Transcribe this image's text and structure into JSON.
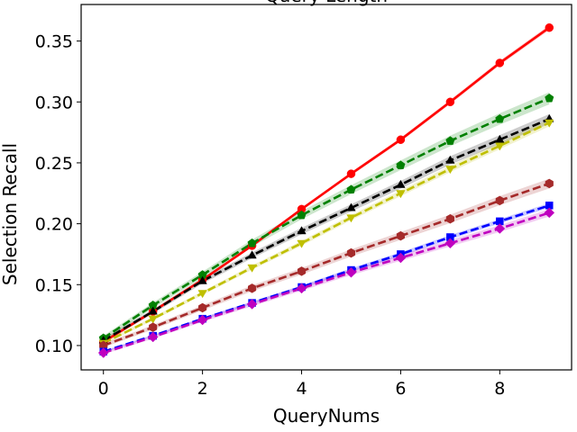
{
  "chart_data": {
    "type": "line",
    "title": "Query Length",
    "xlabel": "QueryNums",
    "ylabel": "Selection Recall",
    "xlim": [
      -0.45,
      9.45
    ],
    "ylim": [
      0.08,
      0.38
    ],
    "xticks": [
      0,
      2,
      4,
      6,
      8
    ],
    "xtick_labels": [
      "0",
      "2",
      "4",
      "6",
      "8"
    ],
    "yticks": [
      0.1,
      0.15,
      0.2,
      0.25,
      0.3,
      0.35
    ],
    "ytick_labels": [
      "0.10",
      "0.15",
      "0.20",
      "0.25",
      "0.30",
      "0.35"
    ],
    "grid": false,
    "legend": "none",
    "x": [
      0,
      1,
      2,
      3,
      4,
      5,
      6,
      7,
      8,
      9
    ],
    "series": [
      {
        "color": "#ff0000",
        "line": "solid",
        "marker": "circle",
        "band": 0.002,
        "values": [
          0.103,
          0.128,
          0.154,
          0.182,
          0.212,
          0.241,
          0.269,
          0.3,
          0.332,
          0.361
        ]
      },
      {
        "color": "#008000",
        "line": "dashed",
        "marker": "pentagon",
        "band": 0.005,
        "values": [
          0.106,
          0.133,
          0.158,
          0.184,
          0.207,
          0.228,
          0.248,
          0.268,
          0.286,
          0.303
        ]
      },
      {
        "color": "#000000",
        "line": "dashed",
        "marker": "triangle-up",
        "band": 0.004,
        "values": [
          0.104,
          0.128,
          0.153,
          0.174,
          0.194,
          0.213,
          0.232,
          0.252,
          0.269,
          0.286
        ]
      },
      {
        "color": "#bfbf00",
        "line": "dashed",
        "marker": "triangle-down",
        "band": 0.003,
        "values": [
          0.102,
          0.122,
          0.143,
          0.164,
          0.184,
          0.205,
          0.225,
          0.245,
          0.264,
          0.283
        ]
      },
      {
        "color": "#a52a2a",
        "line": "dashed",
        "marker": "hexagon",
        "band": 0.004,
        "values": [
          0.1,
          0.115,
          0.131,
          0.147,
          0.161,
          0.176,
          0.19,
          0.204,
          0.219,
          0.233
        ]
      },
      {
        "color": "#0000ff",
        "line": "dashed",
        "marker": "square",
        "band": 0.002,
        "values": [
          0.095,
          0.108,
          0.122,
          0.135,
          0.148,
          0.162,
          0.175,
          0.189,
          0.202,
          0.215
        ]
      },
      {
        "color": "#bf00bf",
        "line": "dashed",
        "marker": "diamond",
        "band": 0.003,
        "values": [
          0.094,
          0.107,
          0.121,
          0.134,
          0.147,
          0.16,
          0.172,
          0.184,
          0.196,
          0.209
        ]
      }
    ]
  }
}
